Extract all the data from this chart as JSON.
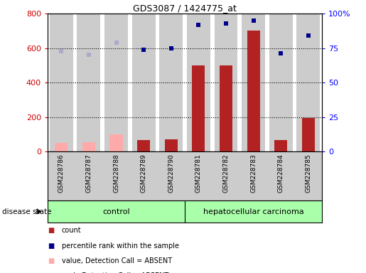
{
  "title": "GDS3087 / 1424775_at",
  "samples": [
    "GSM228786",
    "GSM228787",
    "GSM228788",
    "GSM228789",
    "GSM228790",
    "GSM228781",
    "GSM228782",
    "GSM228783",
    "GSM228784",
    "GSM228785"
  ],
  "groups": [
    "control",
    "control",
    "control",
    "control",
    "control",
    "hepatocellular carcinoma",
    "hepatocellular carcinoma",
    "hepatocellular carcinoma",
    "hepatocellular carcinoma",
    "hepatocellular carcinoma"
  ],
  "bar_values": [
    50,
    55,
    100,
    65,
    70,
    500,
    500,
    700,
    65,
    195
  ],
  "bar_absent": [
    true,
    true,
    true,
    false,
    false,
    false,
    false,
    false,
    false,
    false
  ],
  "scatter_values": [
    73,
    70,
    79,
    74,
    75,
    92,
    93,
    95,
    71,
    84
  ],
  "scatter_absent": [
    true,
    true,
    true,
    false,
    false,
    false,
    false,
    false,
    false,
    false
  ],
  "ylim_left": [
    0,
    800
  ],
  "ylim_right": [
    0,
    100
  ],
  "yticks_left": [
    0,
    200,
    400,
    600,
    800
  ],
  "yticks_right": [
    0,
    25,
    50,
    75,
    100
  ],
  "ytick_labels_right": [
    "0",
    "25",
    "50",
    "75",
    "100%"
  ],
  "bar_color_present": "#b22222",
  "bar_color_absent": "#ffaaaa",
  "scatter_color_present": "#00008b",
  "scatter_color_absent": "#aaaacc",
  "control_color": "#aaffaa",
  "carcinoma_color": "#aaffaa",
  "bg_color": "#cccccc",
  "plot_bg": "#ffffff",
  "legend_items": [
    {
      "color": "#b22222",
      "label": "count"
    },
    {
      "color": "#00008b",
      "label": "percentile rank within the sample"
    },
    {
      "color": "#ffaaaa",
      "label": "value, Detection Call = ABSENT"
    },
    {
      "color": "#aaaacc",
      "label": "rank, Detection Call = ABSENT"
    }
  ]
}
